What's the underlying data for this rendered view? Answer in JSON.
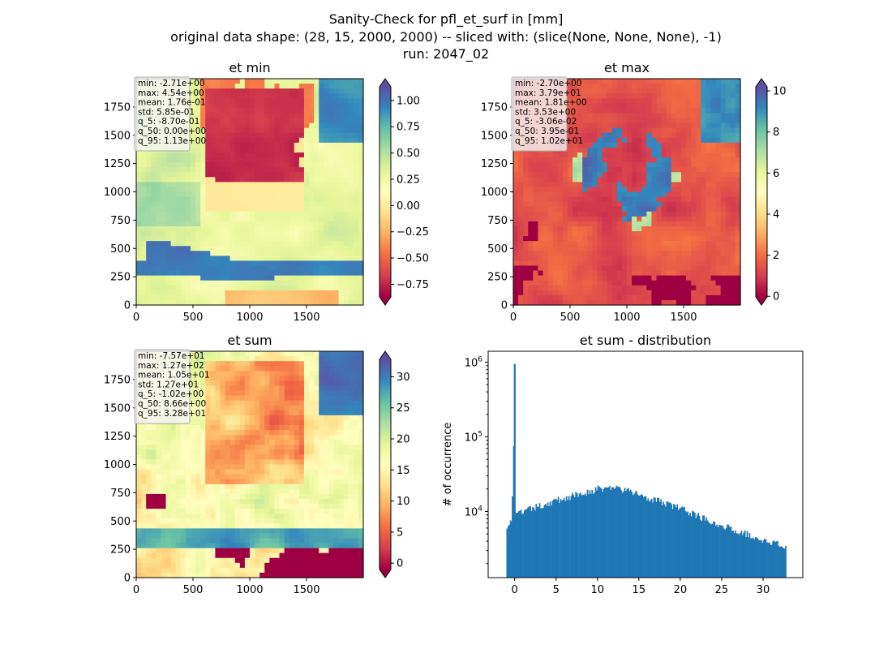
{
  "figure": {
    "title_lines": [
      "Sanity-Check for pfl_et_surf in [mm]",
      "original data shape: (28, 15, 2000, 2000) -- sliced with: (slice(None, None, None), -1)",
      "run: 2047_02"
    ]
  },
  "chart_data": [
    {
      "type": "heatmap",
      "title": "et min",
      "xticks": [
        "0",
        "500",
        "1000",
        "1500"
      ],
      "yticks": [
        "0",
        "250",
        "500",
        "750",
        "1000",
        "1250",
        "1500",
        "1750"
      ],
      "xlim": [
        0,
        2000
      ],
      "ylim": [
        0,
        2000
      ],
      "colormap": "Spectral",
      "colorbar": {
        "ticks": [
          "1.00",
          "0.75",
          "0.50",
          "0.25",
          "0.00",
          "−0.25",
          "−0.50",
          "−0.75"
        ],
        "tick_values": [
          1.0,
          0.75,
          0.5,
          0.25,
          0.0,
          -0.25,
          -0.5,
          -0.75
        ],
        "vmin": -0.87,
        "vmax": 1.13,
        "extend": "both"
      },
      "stats": [
        "min: -2.71e+00",
        "max: 4.54e+00",
        "mean: 1.76e-01",
        "std: 5.85e-01",
        "q_5: -8.70e-01",
        "q_50: 0.00e+00",
        "q_95: 1.13e+00"
      ]
    },
    {
      "type": "heatmap",
      "title": "et max",
      "xticks": [
        "0",
        "500",
        "1000",
        "1500"
      ],
      "yticks": [
        "0",
        "250",
        "500",
        "750",
        "1000",
        "1250",
        "1500",
        "1750"
      ],
      "xlim": [
        0,
        2000
      ],
      "ylim": [
        0,
        2000
      ],
      "colormap": "Spectral",
      "colorbar": {
        "ticks": [
          "10",
          "8",
          "6",
          "4",
          "2",
          "0"
        ],
        "tick_values": [
          10,
          8,
          6,
          4,
          2,
          0
        ],
        "vmin": -0.0306,
        "vmax": 10.2,
        "extend": "both"
      },
      "stats": [
        "min: -2.70e+00",
        "max: 3.79e+01",
        "mean: 1.81e+00",
        "std: 3.53e+00",
        "q_5: -3.06e-02",
        "q_50: 3.95e-01",
        "q_95: 1.02e+01"
      ]
    },
    {
      "type": "heatmap",
      "title": "et sum",
      "xticks": [
        "0",
        "500",
        "1000",
        "1500"
      ],
      "yticks": [
        "0",
        "250",
        "500",
        "750",
        "1000",
        "1250",
        "1500",
        "1750"
      ],
      "xlim": [
        0,
        2000
      ],
      "ylim": [
        0,
        2000
      ],
      "colormap": "Spectral",
      "colorbar": {
        "ticks": [
          "30",
          "25",
          "20",
          "15",
          "10",
          "5",
          "0"
        ],
        "tick_values": [
          30,
          25,
          20,
          15,
          10,
          5,
          0
        ],
        "vmin": -1.02,
        "vmax": 32.8,
        "extend": "both"
      },
      "stats": [
        "min: -7.57e+01",
        "max: 1.27e+02",
        "mean: 1.05e+01",
        "std: 1.27e+01",
        "q_5: -1.02e+00",
        "q_50: 8.66e+00",
        "q_95: 3.28e+01"
      ]
    },
    {
      "type": "bar",
      "title": "et sum - distribution",
      "ylabel": "# of occurrence",
      "xlabel": "",
      "yscale": "log",
      "xlim": [
        -3.2,
        34.8
      ],
      "ylim": [
        1300,
        1400000
      ],
      "xticks": [
        "0",
        "5",
        "10",
        "15",
        "20",
        "25",
        "30"
      ],
      "xtick_values": [
        0,
        5,
        10,
        15,
        20,
        25,
        30
      ],
      "yticks": [
        "10^4",
        "10^5",
        "10^6"
      ],
      "ytick_values": [
        10000,
        100000,
        1000000
      ],
      "color": "#1f77b4",
      "bin_range": [
        -1.0,
        32.8
      ],
      "anchors": [
        [
          -1.0,
          6500
        ],
        [
          0.5,
          9500
        ],
        [
          5,
          14000
        ],
        [
          10,
          20000
        ],
        [
          12,
          21000
        ],
        [
          15,
          17000
        ],
        [
          20,
          11000
        ],
        [
          25,
          6500
        ],
        [
          30,
          4200
        ],
        [
          32.8,
          3300
        ]
      ],
      "spikes": [
        [
          0.0,
          950000
        ],
        [
          -0.1,
          75000
        ],
        [
          -0.25,
          16000
        ]
      ]
    }
  ]
}
